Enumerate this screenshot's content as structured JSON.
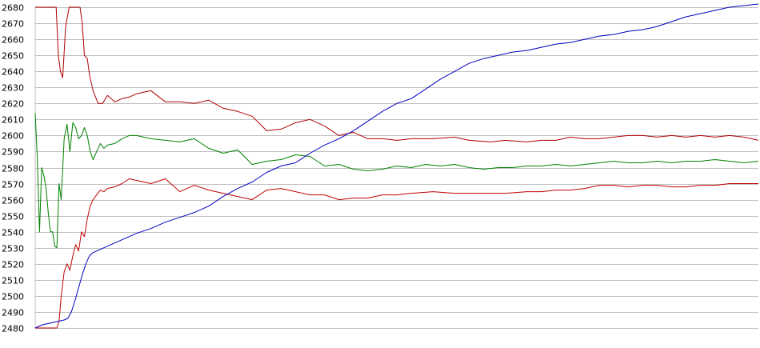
{
  "chart_data": {
    "type": "line",
    "title": "",
    "xlabel": "",
    "ylabel": "",
    "ylim": [
      2480,
      2680
    ],
    "yticks": [
      2480,
      2490,
      2500,
      2510,
      2520,
      2530,
      2540,
      2550,
      2560,
      2570,
      2580,
      2590,
      2600,
      2610,
      2620,
      2630,
      2640,
      2650,
      2660,
      2670,
      2680
    ],
    "ytick_labels": [
      "2480",
      "2490",
      "2500",
      "2510",
      "2520",
      "2530",
      "2540",
      "2550",
      "2560",
      "2570",
      "2580",
      "2590",
      "2600",
      "2610",
      "2620",
      "2630",
      "2640",
      "2650",
      "2660",
      "2670",
      "2680"
    ],
    "xlim": [
      0,
      100
    ],
    "grid": "horizontal",
    "legend": "none",
    "colors": {
      "upper": "#b00000",
      "middle": "#008000",
      "lower": "#c00000",
      "trend": "#0000c0",
      "grid": "#c0c0c0"
    },
    "series": [
      {
        "key": "upper",
        "x": [
          0,
          1.5,
          2,
          2.5,
          2.9,
          3.2,
          3.5,
          3.8,
          4.2,
          4.7,
          5.3,
          5.8,
          6.2,
          6.5,
          6.8,
          7.2,
          7.5,
          8,
          8.7,
          9.3,
          10,
          11,
          12,
          13,
          14,
          16,
          18,
          20,
          22,
          24,
          26,
          28,
          30,
          32,
          34,
          36,
          38,
          40,
          42,
          44,
          46,
          48,
          50,
          52,
          55,
          58,
          60,
          63,
          65,
          68,
          70,
          72,
          74,
          76,
          78,
          80,
          82,
          84,
          86,
          88,
          90,
          92,
          94,
          96,
          98,
          100
        ],
        "values": [
          2680,
          2680,
          2680,
          2680,
          2680,
          2650,
          2640,
          2636,
          2668,
          2680,
          2680,
          2680,
          2680,
          2670,
          2650,
          2648,
          2638,
          2628,
          2620,
          2620,
          2625,
          2621,
          2623,
          2624,
          2626,
          2628,
          2621,
          2621,
          2620,
          2622,
          2617,
          2615,
          2612,
          2603,
          2604,
          2608,
          2610,
          2606,
          2600,
          2602,
          2598,
          2598,
          2597,
          2598,
          2598,
          2599,
          2597,
          2596,
          2597,
          2596,
          2597,
          2597,
          2599,
          2598,
          2598,
          2599,
          2600,
          2600,
          2599,
          2600,
          2599,
          2600,
          2599,
          2600,
          2599,
          2597
        ]
      },
      {
        "key": "middle",
        "x": [
          0,
          0.3,
          0.6,
          0.9,
          1.2,
          1.5,
          1.8,
          2.1,
          2.4,
          2.7,
          3.0,
          3.3,
          3.6,
          4,
          4.4,
          4.8,
          5.2,
          5.6,
          6,
          6.4,
          6.8,
          7.2,
          7.6,
          8.0,
          8.5,
          9,
          9.5,
          10,
          11,
          12,
          13,
          14,
          16,
          18,
          20,
          22,
          24,
          26,
          28,
          30,
          32,
          34,
          36,
          38,
          40,
          42,
          44,
          46,
          48,
          50,
          52,
          54,
          56,
          58,
          60,
          62,
          64,
          66,
          68,
          70,
          72,
          74,
          76,
          78,
          80,
          82,
          84,
          86,
          88,
          90,
          92,
          94,
          96,
          98,
          100
        ],
        "values": [
          2614,
          2585,
          2540,
          2580,
          2575,
          2567,
          2552,
          2540,
          2540,
          2531,
          2530,
          2570,
          2560,
          2598,
          2607,
          2590,
          2608,
          2605,
          2598,
          2600,
          2605,
          2600,
          2590,
          2585,
          2590,
          2595,
          2592,
          2594,
          2595,
          2598,
          2600,
          2600,
          2598,
          2597,
          2596,
          2598,
          2592,
          2589,
          2591,
          2582,
          2584,
          2585,
          2588,
          2587,
          2581,
          2582,
          2579,
          2578,
          2579,
          2581,
          2580,
          2582,
          2581,
          2582,
          2580,
          2579,
          2580,
          2580,
          2581,
          2581,
          2582,
          2581,
          2582,
          2583,
          2584,
          2583,
          2583,
          2584,
          2583,
          2584,
          2584,
          2585,
          2584,
          2583,
          2584
        ]
      },
      {
        "key": "lower",
        "x": [
          0,
          1,
          2,
          2.5,
          3,
          3.3,
          3.6,
          4,
          4.4,
          4.8,
          5.2,
          5.6,
          6,
          6.4,
          6.8,
          7.2,
          7.6,
          8,
          8.5,
          9,
          9.5,
          10,
          11,
          12,
          13,
          14,
          16,
          18,
          20,
          22,
          24,
          26,
          28,
          30,
          32,
          34,
          36,
          38,
          40,
          42,
          44,
          46,
          48,
          50,
          52,
          55,
          58,
          60,
          63,
          65,
          68,
          70,
          72,
          74,
          76,
          78,
          80,
          82,
          84,
          86,
          88,
          90,
          92,
          94,
          96,
          98,
          100
        ],
        "values": [
          2480,
          2480,
          2480,
          2480,
          2480,
          2484,
          2500,
          2515,
          2520,
          2516,
          2525,
          2532,
          2528,
          2540,
          2537,
          2548,
          2556,
          2560,
          2563,
          2566,
          2565,
          2567,
          2568,
          2570,
          2573,
          2572,
          2570,
          2573,
          2565,
          2569,
          2566,
          2564,
          2562,
          2560,
          2566,
          2567,
          2565,
          2563,
          2563,
          2560,
          2561,
          2561,
          2563,
          2563,
          2564,
          2565,
          2564,
          2564,
          2564,
          2564,
          2565,
          2565,
          2566,
          2566,
          2567,
          2569,
          2569,
          2568,
          2569,
          2569,
          2568,
          2568,
          2569,
          2569,
          2570,
          2570,
          2570
        ]
      },
      {
        "key": "trend",
        "x": [
          0,
          1,
          2,
          3,
          4,
          4.5,
          5,
          5.5,
          6,
          6.5,
          7,
          7.5,
          8,
          10,
          12,
          14,
          16,
          18,
          20,
          22,
          24,
          26,
          28,
          30,
          32,
          34,
          36,
          38,
          40,
          42,
          44,
          46,
          48,
          50,
          52,
          54,
          56,
          58,
          60,
          62,
          64,
          66,
          68,
          70,
          72,
          74,
          76,
          78,
          80,
          82,
          84,
          86,
          88,
          90,
          92,
          94,
          96,
          98,
          100
        ],
        "values": [
          2480,
          2482,
          2483,
          2484,
          2485,
          2486,
          2490,
          2497,
          2505,
          2513,
          2520,
          2525,
          2527,
          2531,
          2535,
          2539,
          2542,
          2546,
          2549,
          2552,
          2556,
          2562,
          2567,
          2571,
          2577,
          2581,
          2583,
          2589,
          2594,
          2598,
          2603,
          2609,
          2615,
          2620,
          2623,
          2629,
          2635,
          2640,
          2645,
          2648,
          2650,
          2652,
          2653,
          2655,
          2657,
          2658,
          2660,
          2662,
          2663,
          2665,
          2666,
          2668,
          2671,
          2674,
          2676,
          2678,
          2680,
          2681,
          2682
        ]
      }
    ]
  }
}
